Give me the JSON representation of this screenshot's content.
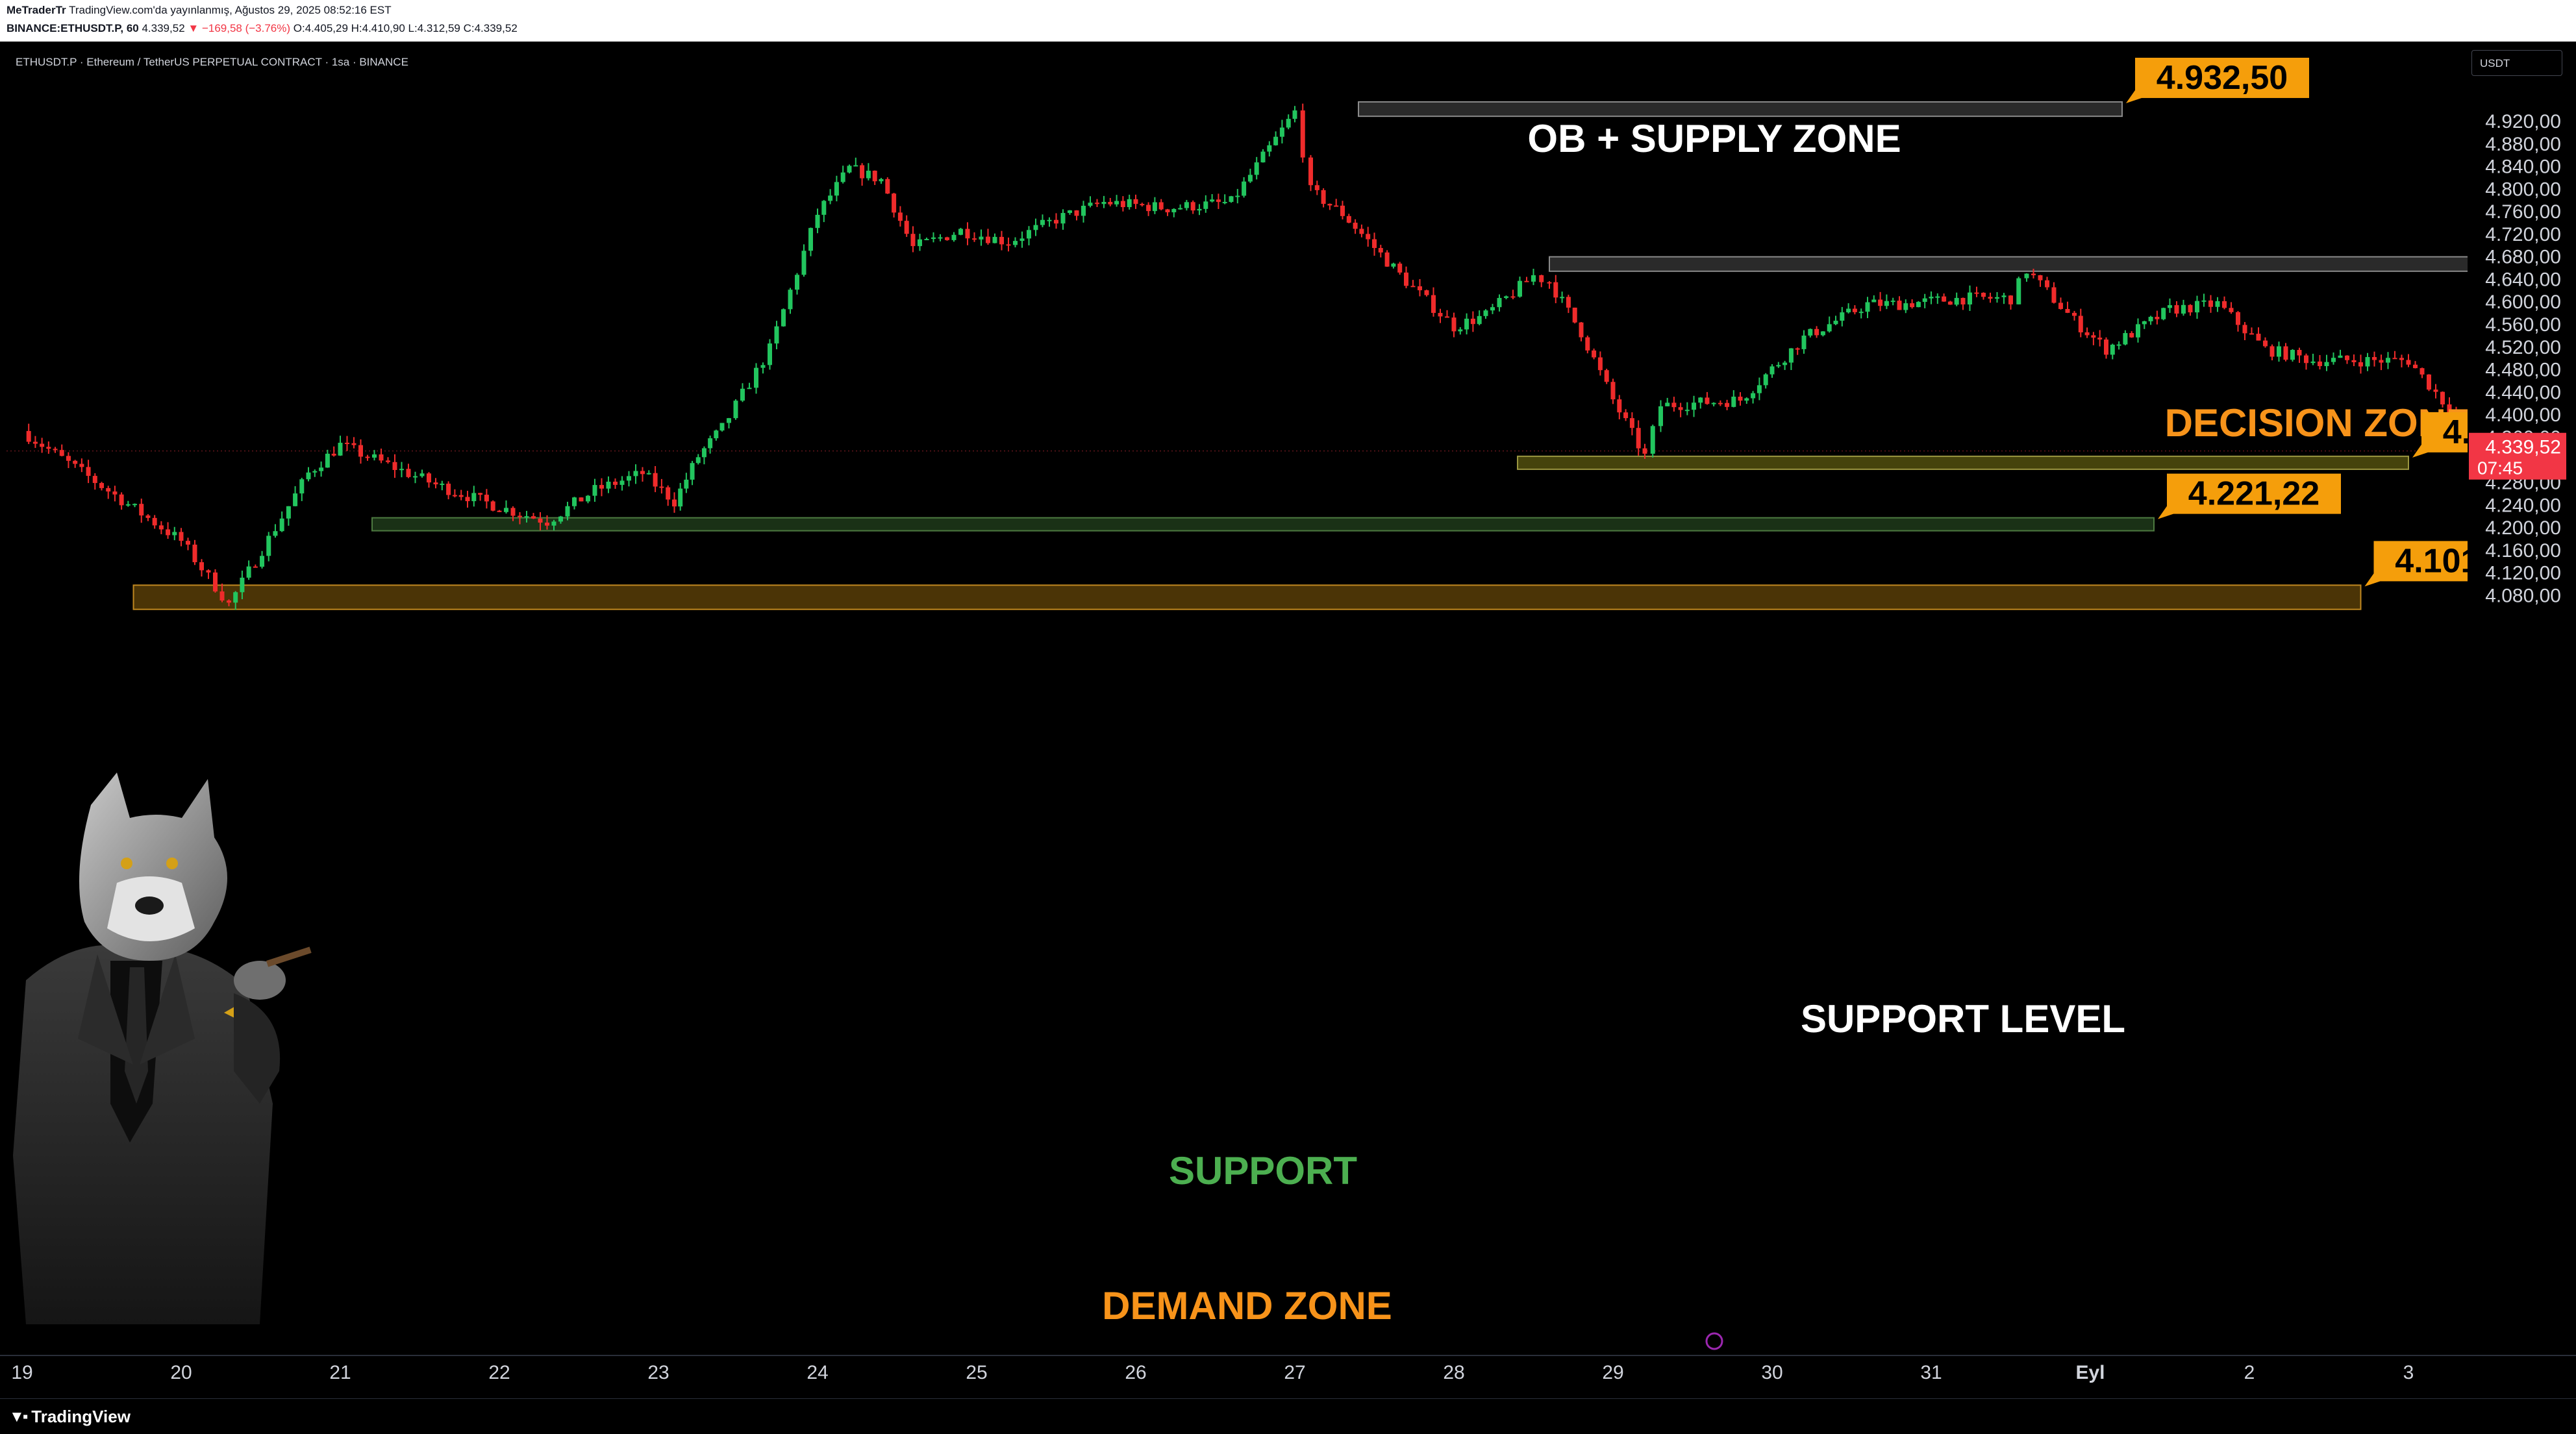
{
  "header": {
    "line1_author": "MeTraderTr",
    "line1_rest": "TradingView.com'da yayınlanmış, Ağustos 29, 2025 08:52:16 EST",
    "line2_symbol": "BINANCE:ETHUSDT.P, 60",
    "line2_price": "4.339,52",
    "line2_change": "▼ −169,58 (−3.76%)",
    "line2_ohlc": "O:4.405,29 H:4.410,90 L:4.312,59 C:4.339,52"
  },
  "symbol_title": "ETHUSDT.P · Ethereum / TetherUS PERPETUAL CONTRACT · 1sa · BINANCE",
  "currency_button": "USDT",
  "footer": {
    "brand": "TradingView",
    "logo_icon": "tradingview-logo-icon"
  },
  "colors": {
    "up": "#22c55e",
    "down": "#ef2b2b",
    "label_bg": "#f59e0b",
    "current_price_bg": "#f23645",
    "support_green": "#4caf50",
    "decision_orange": "#f7931a"
  },
  "chart_data": {
    "type": "candlestick",
    "ylim": [
      4040,
      4960
    ],
    "y_ticks": [
      "4.920,00",
      "4.880,00",
      "4.840,00",
      "4.800,00",
      "4.760,00",
      "4.720,00",
      "4.680,00",
      "4.640,00",
      "4.600,00",
      "4.560,00",
      "4.520,00",
      "4.480,00",
      "4.440,00",
      "4.400,00",
      "4.360,00",
      "4.280,00",
      "4.240,00",
      "4.200,00",
      "4.160,00",
      "4.120,00",
      "4.080,00"
    ],
    "x_ticks": [
      "19",
      "20",
      "21",
      "22",
      "23",
      "24",
      "25",
      "26",
      "27",
      "28",
      "29",
      "30",
      "31",
      "Eyl",
      "2",
      "3"
    ],
    "current_price": {
      "value": "4.339,52",
      "countdown": "07:45"
    },
    "path": [
      [
        0,
        4375
      ],
      [
        1.0,
        4180
      ],
      [
        1.3,
        4068
      ],
      [
        1.8,
        4300
      ],
      [
        2.0,
        4350
      ],
      [
        2.6,
        4280
      ],
      [
        3.0,
        4240
      ],
      [
        3.3,
        4215
      ],
      [
        3.6,
        4270
      ],
      [
        3.9,
        4300
      ],
      [
        4.1,
        4250
      ],
      [
        4.25,
        4330
      ],
      [
        4.4,
        4380
      ],
      [
        4.7,
        4520
      ],
      [
        5.0,
        4760
      ],
      [
        5.2,
        4840
      ],
      [
        5.4,
        4820
      ],
      [
        5.6,
        4700
      ],
      [
        5.9,
        4730
      ],
      [
        6.2,
        4710
      ],
      [
        6.5,
        4750
      ],
      [
        6.8,
        4780
      ],
      [
        7.2,
        4770
      ],
      [
        7.6,
        4780
      ],
      [
        7.8,
        4860
      ],
      [
        8.0,
        4940
      ],
      [
        8.1,
        4800
      ],
      [
        8.3,
        4760
      ],
      [
        8.5,
        4700
      ],
      [
        8.7,
        4640
      ],
      [
        9.0,
        4560
      ],
      [
        9.2,
        4580
      ],
      [
        9.5,
        4650
      ],
      [
        9.6,
        4640
      ],
      [
        9.8,
        4550
      ],
      [
        10.0,
        4430
      ],
      [
        10.2,
        4330
      ],
      [
        10.3,
        4420
      ],
      [
        10.8,
        4430
      ],
      [
        11.2,
        4540
      ],
      [
        11.6,
        4600
      ],
      [
        11.8,
        4600
      ],
      [
        12.2,
        4610
      ],
      [
        12.5,
        4610
      ],
      [
        12.6,
        4660
      ],
      [
        12.9,
        4570
      ],
      [
        13.1,
        4520
      ],
      [
        13.5,
        4590
      ],
      [
        13.8,
        4600
      ],
      [
        14.1,
        4520
      ],
      [
        14.4,
        4500
      ],
      [
        14.7,
        4500
      ],
      [
        15.0,
        4500
      ],
      [
        15.3,
        4400
      ],
      [
        15.5,
        4340
      ],
      [
        15.8,
        4400
      ],
      [
        15.9,
        4339.52
      ]
    ],
    "zones": [
      {
        "label": "OB + SUPPLY ZONE",
        "price_label": "4.932,50",
        "low": 4932.5,
        "high": 4958,
        "x_start": 8.4,
        "x_end": 13.2,
        "label_color": "#ffffff"
      },
      {
        "label": "DECISION ZONE",
        "price_label": "4.683,56",
        "low": 4658,
        "high": 4683.56,
        "x_start": 9.6,
        "x_end": 15.4,
        "label_color": "#f7931a"
      },
      {
        "label": "SUPPORT LEVEL",
        "price_label": "4.330,16",
        "low": 4310,
        "high": 4330.16,
        "x_start": 9.4,
        "x_end": 15.0,
        "label_color": "#ffffff"
      },
      {
        "label": "SUPPORT",
        "price_label": "4.221,22",
        "low": 4201,
        "high": 4221.22,
        "x_start": 2.2,
        "x_end": 13.4,
        "label_color": "#4caf50"
      },
      {
        "label": "DEMAND ZONE",
        "price_label": "4.101,85",
        "low": 4059,
        "high": 4101.85,
        "x_start": 0.7,
        "x_end": 14.7,
        "label_color": "#f7931a"
      }
    ]
  }
}
